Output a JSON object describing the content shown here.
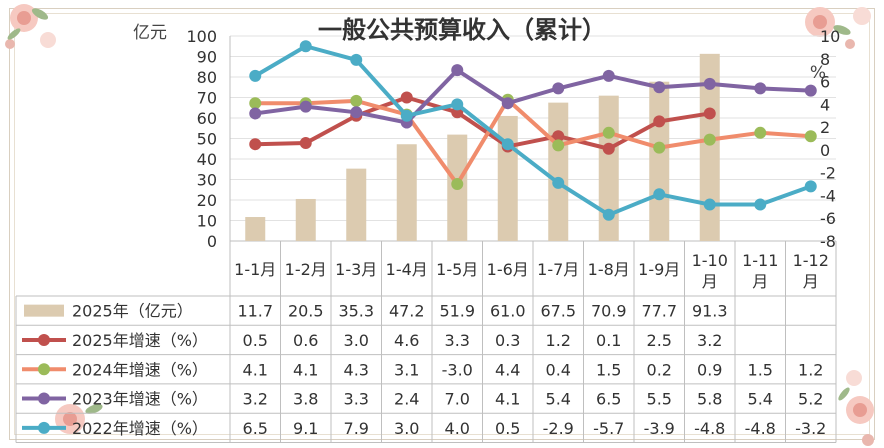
{
  "chart_data": {
    "type": "bar+line",
    "title": "一般公共预算收入（累计）",
    "left_unit": "亿元",
    "right_unit": "%",
    "left_axis": {
      "min": 0,
      "max": 100,
      "step": 10
    },
    "right_axis": {
      "min": -8,
      "max": 10,
      "step": 2
    },
    "categories": [
      "1-1月",
      "1-2月",
      "1-3月",
      "1-4月",
      "1-5月",
      "1-6月",
      "1-7月",
      "1-8月",
      "1-9月",
      "1-10月",
      "1-11月",
      "1-12月"
    ],
    "bar_series": {
      "name": "2025年（亿元）",
      "values": [
        11.7,
        20.5,
        35.3,
        47.2,
        51.9,
        61.0,
        67.5,
        70.9,
        77.7,
        91.3,
        null,
        null
      ],
      "color": "#dccbb0"
    },
    "line_series": [
      {
        "name": "2025年增速（%）",
        "color": "#c0504d",
        "values": [
          0.5,
          0.6,
          3.0,
          4.6,
          3.3,
          0.3,
          1.2,
          0.1,
          2.5,
          3.2,
          null,
          null
        ]
      },
      {
        "name": "2024年增速（%）",
        "color": "#f08c6c",
        "marker": "#9bbb59",
        "values": [
          4.1,
          4.1,
          4.3,
          3.1,
          -3.0,
          4.4,
          0.4,
          1.5,
          0.2,
          0.9,
          1.5,
          1.2
        ]
      },
      {
        "name": "2023年增速（%）",
        "color": "#8064a2",
        "values": [
          3.2,
          3.8,
          3.3,
          2.4,
          7.0,
          4.1,
          5.4,
          6.5,
          5.5,
          5.8,
          5.4,
          5.2
        ]
      },
      {
        "name": "2022年增速（%）",
        "color": "#4bacc6",
        "values": [
          6.5,
          9.1,
          7.9,
          3.0,
          4.0,
          0.5,
          -2.9,
          -5.7,
          -3.9,
          -4.8,
          -4.8,
          -3.2
        ]
      }
    ]
  }
}
